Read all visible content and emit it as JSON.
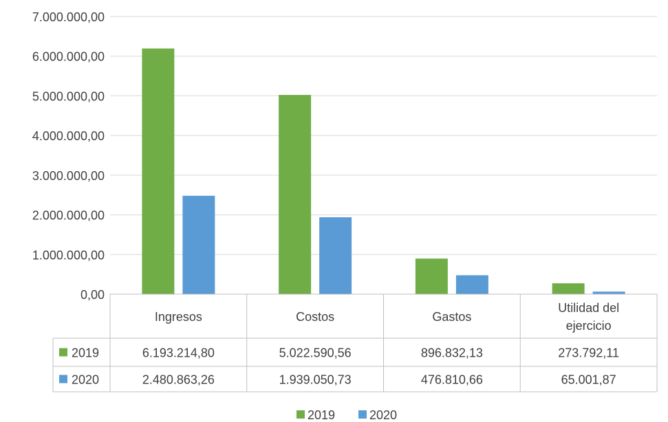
{
  "chart_data": {
    "type": "bar",
    "title": "",
    "xlabel": "",
    "ylabel": "",
    "ylim": [
      0,
      7000000
    ],
    "y_ticks": [
      0,
      1000000,
      2000000,
      3000000,
      4000000,
      5000000,
      6000000,
      7000000
    ],
    "y_tick_labels": [
      "0,00",
      "1.000.000,00",
      "2.000.000,00",
      "3.000.000,00",
      "4.000.000,00",
      "5.000.000,00",
      "6.000.000,00",
      "7.000.000,00"
    ],
    "grid": true,
    "legend_position": "bottom",
    "categories": [
      [
        "Ingresos"
      ],
      [
        "Costos"
      ],
      [
        "Gastos"
      ],
      [
        "Utilidad del",
        "ejercicio"
      ]
    ],
    "series": [
      {
        "name": "2019",
        "color": "#70ad47",
        "values": [
          6193214.8,
          5022590.56,
          896832.13,
          273792.11
        ],
        "labels": [
          "6.193.214,80",
          "5.022.590,56",
          "896.832,13",
          "273.792,11"
        ]
      },
      {
        "name": "2020",
        "color": "#5b9bd5",
        "values": [
          2480863.26,
          1939050.73,
          476810.66,
          65001.87
        ],
        "labels": [
          "2.480.863,26",
          "1.939.050,73",
          "476.810,66",
          "65.001,87"
        ]
      }
    ]
  }
}
